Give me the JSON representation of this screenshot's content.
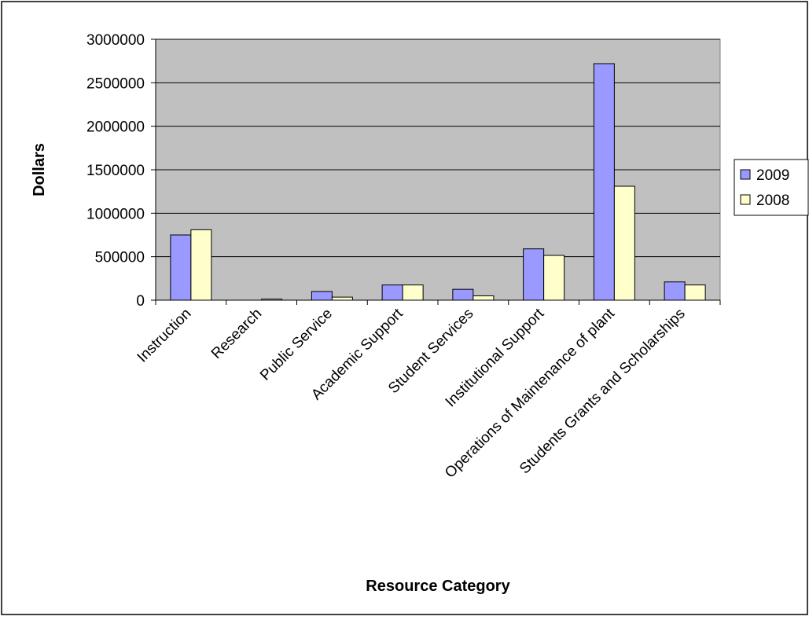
{
  "chart_data": {
    "type": "bar",
    "title": "",
    "xlabel": "Resource Category",
    "ylabel": "Dollars",
    "ylim": [
      0,
      3000000
    ],
    "yticks": [
      0,
      500000,
      1000000,
      1500000,
      2000000,
      2500000,
      3000000
    ],
    "ytick_labels": [
      "0",
      "500000",
      "1000000",
      "1500000",
      "2000000",
      "2500000",
      "3000000"
    ],
    "categories": [
      "Instruction",
      "Research",
      "Public Service",
      "Academic Support",
      "Student Services",
      "Institutional Support",
      "Operations of Maintenance of plant",
      "Students Grants and Scholarships"
    ],
    "series": [
      {
        "name": "2009",
        "color": "#9999ff",
        "values": [
          750000,
          0,
          100000,
          175000,
          125000,
          590000,
          2720000,
          210000
        ]
      },
      {
        "name": "2008",
        "color": "#ffffcc",
        "values": [
          810000,
          12000,
          35000,
          175000,
          50000,
          515000,
          1310000,
          175000
        ]
      }
    ],
    "grid": true,
    "legend_position": "right",
    "plot_background": "#c0c0c0"
  }
}
